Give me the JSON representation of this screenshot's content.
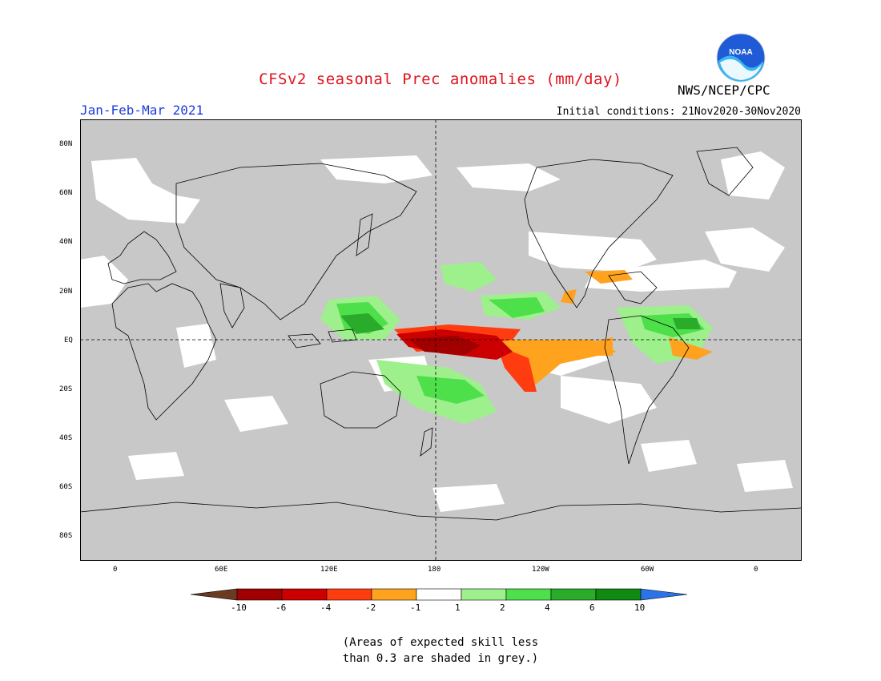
{
  "header": {
    "title": "CFSv2 seasonal Prec anomalies (mm/day)",
    "org": "NWS/NCEP/CPC",
    "season": "Jan-Feb-Mar 2021",
    "initial_conditions": "Initial conditions: 21Nov2020-30Nov2020",
    "logo_text": "NOAA"
  },
  "axes": {
    "lat_ticks": [
      "80N",
      "60N",
      "40N",
      "20N",
      "EQ",
      "20S",
      "40S",
      "60S",
      "80S"
    ],
    "lon_ticks": [
      "0",
      "60E",
      "120E",
      "180",
      "120W",
      "60W",
      "0"
    ]
  },
  "legend": {
    "labels": [
      "-10",
      "-6",
      "-4",
      "-2",
      "-1",
      "1",
      "2",
      "4",
      "6",
      "10"
    ],
    "colors": [
      "#6b3a23",
      "#a00000",
      "#cc0000",
      "#ff3b10",
      "#ffa21e",
      "#ffffff",
      "#9ef08c",
      "#4ee04b",
      "#2aab2a",
      "#108a10",
      "#2a73e8"
    ]
  },
  "footnote": {
    "line1": "(Areas of expected skill less",
    "line2": "than 0.3 are shaded in grey.)"
  },
  "map": {
    "background_color": "#c8c8c8",
    "features": [
      {
        "name": "central-pacific-dry-anomaly",
        "category": "< -6"
      },
      {
        "name": "eastern-pacific-dry-tongue",
        "category": "-2 to -4"
      },
      {
        "name": "maritime-continent-wet-anomaly",
        "category": "2 to 6"
      },
      {
        "name": "spcz-wet-anomaly",
        "category": "1 to 4"
      },
      {
        "name": "north-pacific-wet-band",
        "category": "1 to 4"
      },
      {
        "name": "amazon-wet-anomaly",
        "category": "2 to 6"
      },
      {
        "name": "gulf-of-mexico-dry-anomaly",
        "category": "-1 to -4"
      }
    ]
  }
}
